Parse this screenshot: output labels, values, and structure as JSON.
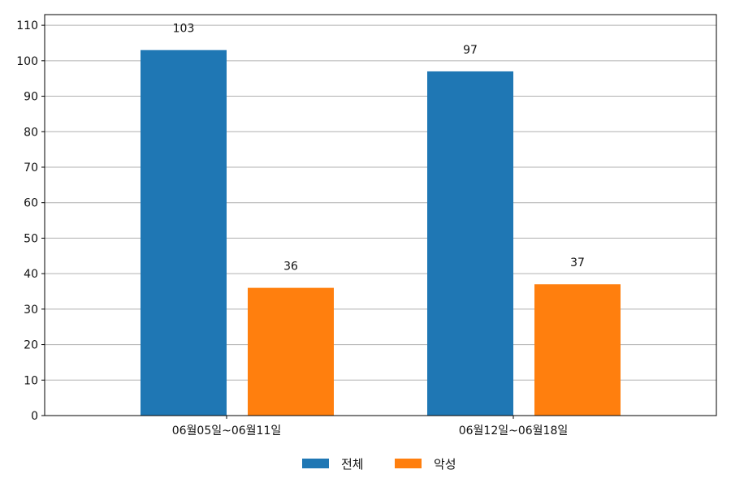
{
  "chart_data": {
    "type": "bar",
    "categories": [
      "06월05일~06월11일",
      "06월12일~06월18일"
    ],
    "series": [
      {
        "name": "전체",
        "values": [
          103,
          97
        ],
        "color": "#1f77b4"
      },
      {
        "name": "악성",
        "values": [
          36,
          37
        ],
        "color": "#ff7f0e"
      }
    ],
    "ylim": [
      0,
      113
    ],
    "yticks": [
      0,
      10,
      20,
      30,
      40,
      50,
      60,
      70,
      80,
      90,
      100,
      110
    ],
    "grid": true,
    "legend_position": "bottom-center",
    "xlabel": "",
    "ylabel": "",
    "title": ""
  }
}
